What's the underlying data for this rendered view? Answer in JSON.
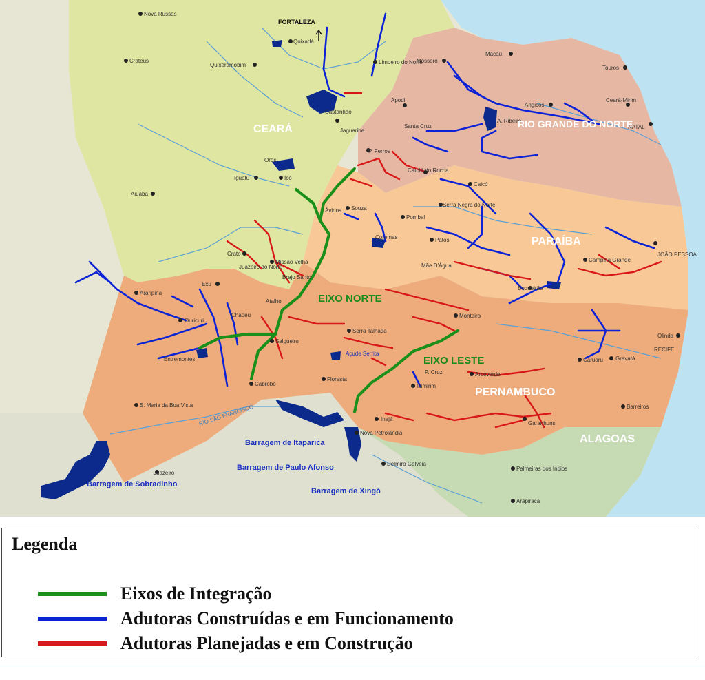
{
  "map": {
    "states": [
      {
        "id": "ceara",
        "name": "CEARÁ"
      },
      {
        "id": "rn",
        "name": "RIO GRANDE DO NORTE"
      },
      {
        "id": "pb",
        "name": "PARAÍBA"
      },
      {
        "id": "pe",
        "name": "PERNAMBUCO"
      },
      {
        "id": "al",
        "name": "ALAGOAS"
      }
    ],
    "axes": [
      {
        "id": "norte",
        "name": "EIXO NORTE"
      },
      {
        "id": "leste",
        "name": "EIXO LESTE"
      }
    ],
    "dams": [
      {
        "id": "itaparica",
        "name": "Barragem de Itaparica"
      },
      {
        "id": "pauloafonso",
        "name": "Barragem de Paulo Afonso"
      },
      {
        "id": "xingo",
        "name": "Barragem de Xingó"
      },
      {
        "id": "sobradinho",
        "name": "Barragem de Sobradinho"
      }
    ],
    "rivers": [
      {
        "id": "saofrancisco",
        "name": "RIO SÃO FRANCISCO"
      }
    ],
    "cities": [
      "Nova Russas",
      "FORTALEZA",
      "Quixadá",
      "Limoeiro do Norte",
      "Crateús",
      "Quixeramobim",
      "Mossoró",
      "Macau",
      "Touros",
      "Castanhão",
      "Jaguaribe",
      "Apodi",
      "Angicos",
      "Ceará-Mirim",
      "Santa Cruz",
      "A. Ribeiro",
      "NATAL",
      "P. Ferros",
      "Orós",
      "Iguatu",
      "Icó",
      "Catolé do Rocha",
      "Caicó",
      "Aiuaba",
      "Ávidos",
      "Souza",
      "Serra Negra do Norte",
      "Pombal",
      "Coremas",
      "Patos",
      "Crato",
      "Juazeiro do Norte",
      "Missão Velha",
      "Brejo Santo",
      "Mãe D'Água",
      "Campina Grande",
      "JOÃO PESSOA",
      "Exu",
      "Araripina",
      "Atalho",
      "Chapéu",
      "Boqueirão",
      "Ouricuri",
      "Salgueiro",
      "Monteiro",
      "Olinda",
      "Serra Talhada",
      "Entremontes",
      "RECIFE",
      "Gravatá",
      "Caruaru",
      "Cabrobó",
      "Floresta",
      "Açude Serrita",
      "P. Cruz",
      "Arcoverde",
      "Ibimirim",
      "S. Maria da Boa Vista",
      "Barreiros",
      "Inajá",
      "Nova Petrolândia",
      "Garanhuns",
      "Juazeiro",
      "Delmiro Golveia",
      "Palmeiras dos Índios",
      "Arapiraca"
    ]
  },
  "legend": {
    "title": "Legenda",
    "items": [
      {
        "label": "Eixos de Integração",
        "color": "#1a8f1a"
      },
      {
        "label": "Adutoras Construídas e em Funcionamento",
        "color": "#0b22d6"
      },
      {
        "label": "Adutoras Planejadas e em Construção",
        "color": "#d81818"
      }
    ]
  },
  "colors": {
    "ocean": "#bde3f3",
    "ceara": "#dfe6a1",
    "rn": "#e6b8a3",
    "pb": "#f8c997",
    "pe": "#eeac7c",
    "al": "#c6dbb4",
    "bahia": "#dfe0cf",
    "piaui": "#e7e6d4"
  }
}
